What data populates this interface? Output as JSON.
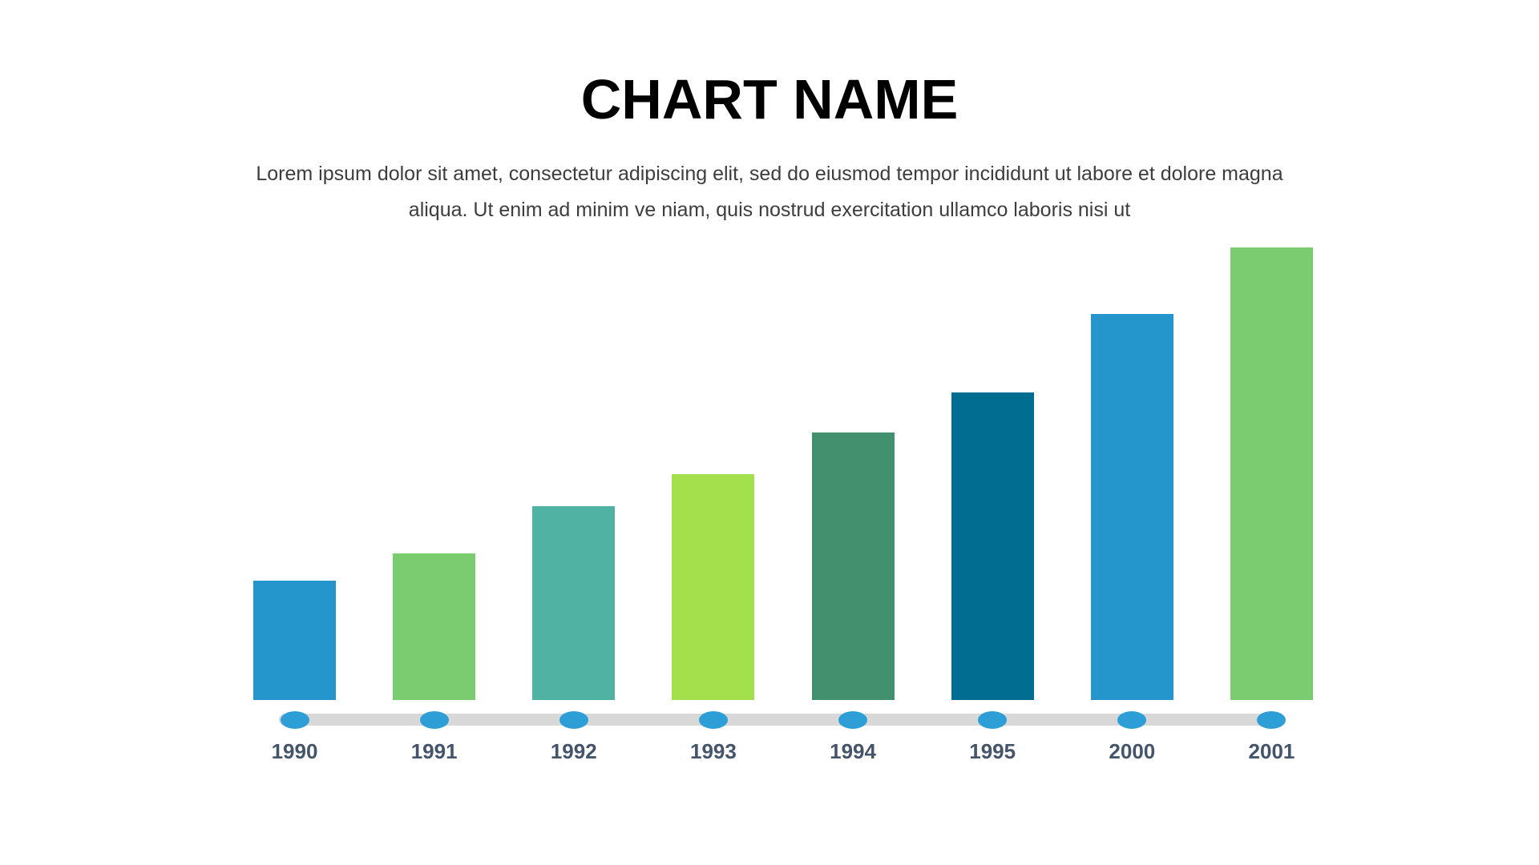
{
  "page": {
    "background_color": "#ffffff"
  },
  "header": {
    "title": "CHART NAME",
    "subtitle_lines": [
      "Lorem ipsum dolor sit amet, consectetur adipiscing elit, sed do eiusmod tempor incididunt ut labore et dolore magna",
      "aliqua. Ut enim ad minim ve niam, quis nostrud exercitation ullamco laboris nisi ut"
    ]
  },
  "chart_data": {
    "type": "bar",
    "title": "CHART NAME",
    "categories": [
      "1990",
      "1991",
      "1992",
      "1993",
      "1994",
      "1995",
      "2000",
      "2001"
    ],
    "values": [
      26.4,
      32.4,
      42.8,
      49.9,
      59.1,
      68.0,
      85.3,
      100
    ],
    "value_unit": "percent-of-tallest-bar (no value axis or data labels shown)",
    "bar_colors": [
      "#2496cb",
      "#7bcb70",
      "#4fb2a3",
      "#a4e04b",
      "#42906e",
      "#016e91",
      "#2496cb",
      "#7bcb70"
    ],
    "xlabel": "",
    "ylabel": "",
    "grid": false,
    "legend": "none",
    "axis_style": {
      "timeline_line_color": "#d8d8d8",
      "timeline_dot_color": "#2e9fd6",
      "tick_label_color": "#44546a"
    }
  }
}
